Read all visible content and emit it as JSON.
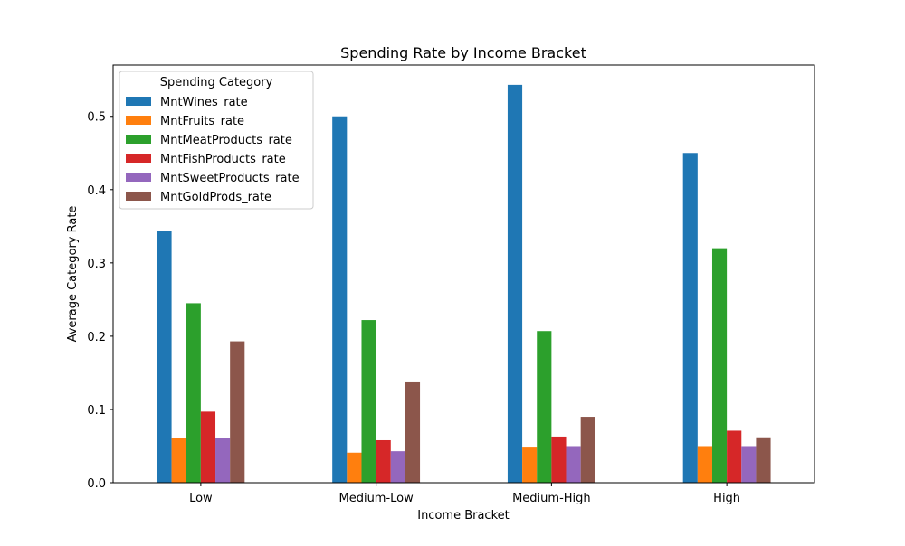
{
  "chart_data": {
    "type": "bar",
    "title": "Spending Rate by Income Bracket",
    "xlabel": "Income Bracket",
    "ylabel": "Average Category Rate",
    "categories": [
      "Low",
      "Medium-Low",
      "Medium-High",
      "High"
    ],
    "ylim": [
      0,
      0.57
    ],
    "yticks": [
      0.0,
      0.1,
      0.2,
      0.3,
      0.4,
      0.5
    ],
    "ytick_labels": [
      "0.0",
      "0.1",
      "0.2",
      "0.3",
      "0.4",
      "0.5"
    ],
    "grid": false,
    "legend": {
      "title": "Spending Category",
      "placement": "top-left"
    },
    "series": [
      {
        "name": "MntWines_rate",
        "color": "#1f77b4",
        "values": [
          0.343,
          0.5,
          0.543,
          0.45
        ]
      },
      {
        "name": "MntFruits_rate",
        "color": "#ff7f0e",
        "values": [
          0.061,
          0.041,
          0.048,
          0.05
        ]
      },
      {
        "name": "MntMeatProducts_rate",
        "color": "#2ca02c",
        "values": [
          0.245,
          0.222,
          0.207,
          0.32
        ]
      },
      {
        "name": "MntFishProducts_rate",
        "color": "#d62728",
        "values": [
          0.097,
          0.058,
          0.063,
          0.071
        ]
      },
      {
        "name": "MntSweetProducts_rate",
        "color": "#9467bd",
        "values": [
          0.061,
          0.043,
          0.05,
          0.05
        ]
      },
      {
        "name": "MntGoldProds_rate",
        "color": "#8c564b",
        "values": [
          0.193,
          0.137,
          0.09,
          0.062
        ]
      }
    ]
  }
}
